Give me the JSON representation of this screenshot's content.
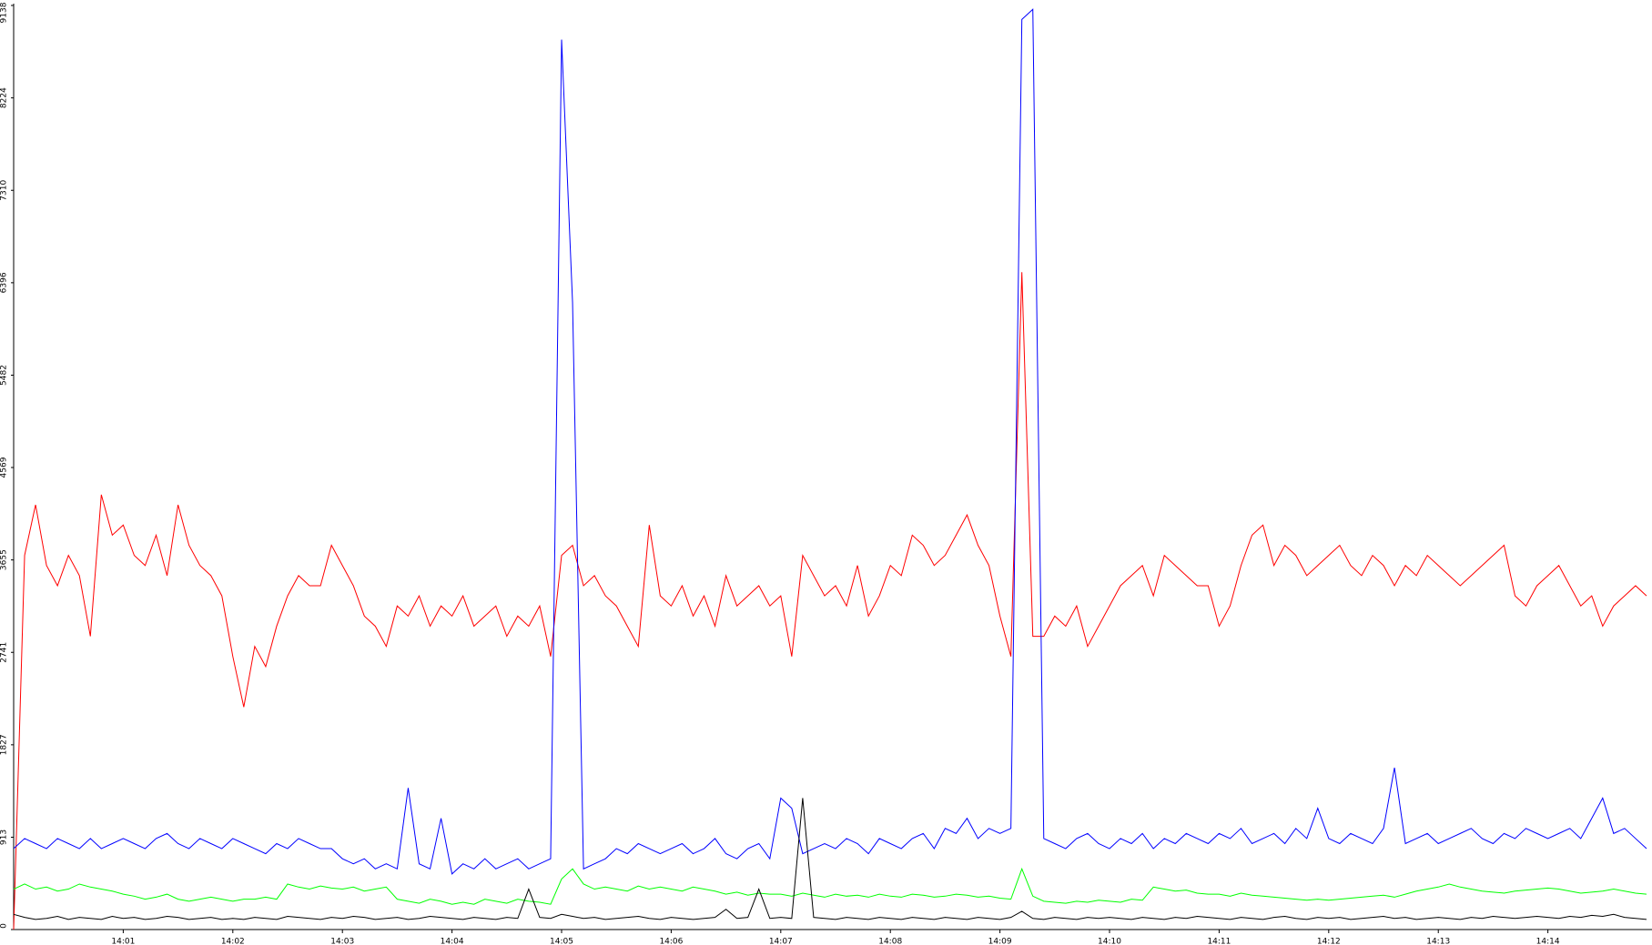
{
  "chart_data": {
    "type": "line",
    "x": [
      0,
      0.1,
      0.2,
      0.3,
      0.4,
      0.5,
      0.6,
      0.7,
      0.8,
      0.9,
      1,
      1.1,
      1.2,
      1.3,
      1.4,
      1.5,
      1.6,
      1.7,
      1.8,
      1.9,
      2,
      2.1,
      2.2,
      2.3,
      2.4,
      2.5,
      2.6,
      2.7,
      2.8,
      2.9,
      3,
      3.1,
      3.2,
      3.3,
      3.4,
      3.5,
      3.6,
      3.7,
      3.8,
      3.9,
      4,
      4.1,
      4.2,
      4.3,
      4.4,
      4.5,
      4.6,
      4.7,
      4.8,
      4.9,
      5,
      5.1,
      5.2,
      5.3,
      5.4,
      5.5,
      5.6,
      5.7,
      5.8,
      5.9,
      6,
      6.1,
      6.2,
      6.3,
      6.4,
      6.5,
      6.6,
      6.7,
      6.8,
      6.9,
      7,
      7.1,
      7.2,
      7.3,
      7.4,
      7.5,
      7.6,
      7.7,
      7.8,
      7.9,
      8,
      8.1,
      8.2,
      8.3,
      8.4,
      8.5,
      8.6,
      8.7,
      8.8,
      8.9,
      9,
      9.1,
      9.2,
      9.3,
      9.4,
      9.5,
      9.6,
      9.7,
      9.8,
      9.9,
      10,
      10.1,
      10.2,
      10.3,
      10.4,
      10.5,
      10.6,
      10.7,
      10.8,
      10.9,
      11,
      11.1,
      11.2,
      11.3,
      11.4,
      11.5,
      11.6,
      11.7,
      11.8,
      11.9,
      12,
      12.1,
      12.2,
      12.3,
      12.4,
      12.5,
      12.6,
      12.7,
      12.8,
      12.9,
      13,
      13.1,
      13.2,
      13.3,
      13.4,
      13.5,
      13.6,
      13.7,
      13.8,
      13.9,
      14,
      14.1,
      14.2,
      14.3,
      14.4,
      14.5,
      14.6,
      14.7,
      14.8,
      14.9
    ],
    "series": [
      {
        "color": "#ff0000",
        "values": [
          0,
          3700,
          4200,
          3600,
          3400,
          3700,
          3500,
          2900,
          4300,
          3900,
          4000,
          3700,
          3600,
          3900,
          3500,
          4200,
          3800,
          3600,
          3500,
          3300,
          2700,
          2200,
          2800,
          2600,
          3000,
          3300,
          3500,
          3400,
          3400,
          3800,
          3600,
          3400,
          3100,
          3000,
          2800,
          3200,
          3100,
          3300,
          3000,
          3200,
          3100,
          3300,
          3000,
          3100,
          3200,
          2900,
          3100,
          3000,
          3200,
          2700,
          3700,
          3800,
          3400,
          3500,
          3300,
          3200,
          3000,
          2800,
          4000,
          3300,
          3200,
          3400,
          3100,
          3300,
          3000,
          3500,
          3200,
          3300,
          3400,
          3200,
          3300,
          2700,
          3700,
          3500,
          3300,
          3400,
          3200,
          3600,
          3100,
          3300,
          3600,
          3500,
          3900,
          3800,
          3600,
          3700,
          3900,
          4100,
          3800,
          3600,
          3100,
          2700,
          6500,
          2900,
          2900,
          3100,
          3000,
          3200,
          2800,
          3000,
          3200,
          3400,
          3500,
          3600,
          3300,
          3700,
          3600,
          3500,
          3400,
          3400,
          3000,
          3200,
          3600,
          3900,
          4000,
          3600,
          3800,
          3700,
          3500,
          3600,
          3700,
          3800,
          3600,
          3500,
          3700,
          3600,
          3400,
          3600,
          3500,
          3700,
          3600,
          3500,
          3400,
          3500,
          3600,
          3700,
          3800,
          3300,
          3200,
          3400,
          3500,
          3600,
          3400,
          3200,
          3300,
          3000,
          3200,
          3300,
          3400,
          3300
        ]
      },
      {
        "color": "#0000ff",
        "values": [
          800,
          900,
          850,
          800,
          900,
          850,
          800,
          900,
          800,
          850,
          900,
          850,
          800,
          900,
          950,
          850,
          800,
          900,
          850,
          800,
          900,
          850,
          800,
          750,
          850,
          800,
          900,
          850,
          800,
          800,
          700,
          650,
          700,
          600,
          650,
          600,
          1400,
          650,
          600,
          1100,
          550,
          650,
          600,
          700,
          600,
          650,
          700,
          600,
          650,
          700,
          8800,
          6200,
          600,
          650,
          700,
          800,
          750,
          850,
          800,
          750,
          800,
          850,
          750,
          800,
          900,
          750,
          700,
          800,
          850,
          700,
          1300,
          1200,
          750,
          800,
          850,
          800,
          900,
          850,
          750,
          900,
          850,
          800,
          900,
          950,
          800,
          1000,
          950,
          1100,
          900,
          1000,
          950,
          1000,
          9000,
          9100,
          900,
          850,
          800,
          900,
          950,
          850,
          800,
          900,
          850,
          950,
          800,
          900,
          850,
          950,
          900,
          850,
          950,
          900,
          1000,
          850,
          900,
          950,
          850,
          1000,
          900,
          1200,
          900,
          850,
          950,
          900,
          850,
          1000,
          1600,
          850,
          900,
          950,
          850,
          900,
          950,
          1000,
          900,
          850,
          950,
          900,
          1000,
          950,
          900,
          950,
          1000,
          900,
          1100,
          1300,
          950,
          1000,
          900,
          800
        ]
      },
      {
        "color": "#00ff00",
        "values": [
          400,
          450,
          400,
          420,
          380,
          400,
          450,
          420,
          400,
          380,
          350,
          330,
          300,
          320,
          350,
          300,
          280,
          300,
          320,
          300,
          280,
          300,
          300,
          320,
          300,
          450,
          420,
          400,
          430,
          410,
          400,
          420,
          380,
          400,
          420,
          300,
          280,
          260,
          300,
          280,
          250,
          270,
          250,
          300,
          280,
          260,
          300,
          280,
          270,
          250,
          500,
          600,
          450,
          400,
          420,
          400,
          380,
          430,
          400,
          420,
          400,
          380,
          420,
          400,
          380,
          350,
          370,
          340,
          360,
          350,
          350,
          330,
          360,
          340,
          320,
          350,
          330,
          340,
          320,
          350,
          330,
          320,
          350,
          340,
          320,
          330,
          350,
          340,
          320,
          330,
          310,
          300,
          600,
          330,
          280,
          270,
          260,
          280,
          270,
          290,
          280,
          270,
          300,
          290,
          420,
          400,
          380,
          390,
          360,
          350,
          350,
          330,
          360,
          340,
          330,
          320,
          310,
          300,
          290,
          300,
          290,
          300,
          310,
          320,
          330,
          340,
          320,
          350,
          380,
          400,
          420,
          450,
          420,
          400,
          380,
          370,
          360,
          380,
          390,
          400,
          410,
          400,
          380,
          360,
          370,
          380,
          400,
          380,
          360,
          350
        ]
      },
      {
        "color": "#000000",
        "values": [
          150,
          120,
          100,
          110,
          130,
          100,
          120,
          110,
          100,
          130,
          110,
          120,
          100,
          110,
          130,
          120,
          100,
          110,
          120,
          100,
          110,
          100,
          120,
          110,
          100,
          130,
          120,
          110,
          100,
          120,
          110,
          130,
          120,
          100,
          110,
          120,
          100,
          110,
          130,
          120,
          110,
          100,
          120,
          110,
          100,
          120,
          110,
          400,
          120,
          110,
          150,
          130,
          110,
          120,
          100,
          110,
          120,
          130,
          110,
          100,
          120,
          110,
          100,
          110,
          120,
          200,
          110,
          120,
          400,
          110,
          120,
          110,
          1300,
          120,
          110,
          100,
          120,
          110,
          100,
          120,
          110,
          100,
          120,
          110,
          100,
          120,
          110,
          100,
          120,
          110,
          100,
          120,
          180,
          110,
          100,
          120,
          110,
          100,
          120,
          110,
          120,
          110,
          100,
          120,
          110,
          100,
          120,
          110,
          130,
          120,
          110,
          100,
          120,
          110,
          100,
          120,
          130,
          110,
          100,
          120,
          110,
          120,
          100,
          110,
          120,
          130,
          110,
          120,
          100,
          110,
          120,
          110,
          100,
          120,
          110,
          130,
          120,
          110,
          120,
          130,
          120,
          110,
          130,
          120,
          140,
          130,
          150,
          120,
          110,
          100
        ]
      }
    ],
    "xlim": [
      0,
      14.95
    ],
    "xticks": [
      {
        "value": 1,
        "label": "14:01"
      },
      {
        "value": 2,
        "label": "14:02"
      },
      {
        "value": 3,
        "label": "14:03"
      },
      {
        "value": 4,
        "label": "14:04"
      },
      {
        "value": 5,
        "label": "14:05"
      },
      {
        "value": 6,
        "label": "14:06"
      },
      {
        "value": 7,
        "label": "14:07"
      },
      {
        "value": 8,
        "label": "14:08"
      },
      {
        "value": 9,
        "label": "14:09"
      },
      {
        "value": 10,
        "label": "14:10"
      },
      {
        "value": 11,
        "label": "14:11"
      },
      {
        "value": 12,
        "label": "14:12"
      },
      {
        "value": 13,
        "label": "14:13"
      },
      {
        "value": 14,
        "label": "14:14"
      }
    ],
    "ylim": [
      0,
      9138
    ],
    "yticks": [
      0,
      913,
      1827,
      2741,
      3655,
      4569,
      5482,
      6396,
      7310,
      8224,
      9138
    ],
    "grid": false
  }
}
